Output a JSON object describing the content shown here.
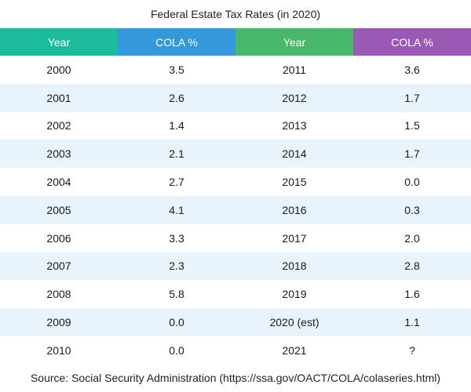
{
  "title": "Federal Estate Tax Rates (in 2020)",
  "headers": {
    "year_1": "Year",
    "cola_1": "COLA %",
    "year_2": "Year",
    "cola_2": "COLA %"
  },
  "header_colors": {
    "year_1": "#1abc9c",
    "cola_1": "#3498db",
    "year_2": "#4ab86a",
    "cola_2": "#9b59b6"
  },
  "rows": [
    {
      "year_1": "2000",
      "cola_1": "3.5",
      "year_2": "2011",
      "cola_2": "3.6"
    },
    {
      "year_1": "2001",
      "cola_1": "2.6",
      "year_2": "2012",
      "cola_2": "1.7"
    },
    {
      "year_1": "2002",
      "cola_1": "1.4",
      "year_2": "2013",
      "cola_2": "1.5"
    },
    {
      "year_1": "2003",
      "cola_1": "2.1",
      "year_2": "2014",
      "cola_2": "1.7"
    },
    {
      "year_1": "2004",
      "cola_1": "2.7",
      "year_2": "2015",
      "cola_2": "0.0"
    },
    {
      "year_1": "2005",
      "cola_1": "4.1",
      "year_2": "2016",
      "cola_2": "0.3"
    },
    {
      "year_1": "2006",
      "cola_1": "3.3",
      "year_2": "2017",
      "cola_2": "2.0"
    },
    {
      "year_1": "2007",
      "cola_1": "2.3",
      "year_2": "2018",
      "cola_2": "2.8"
    },
    {
      "year_1": "2008",
      "cola_1": "5.8",
      "year_2": "2019",
      "cola_2": "1.6"
    },
    {
      "year_1": "2009",
      "cola_1": "0.0",
      "year_2": "2020 (est)",
      "cola_2": "1.1"
    },
    {
      "year_1": "2010",
      "cola_1": "0.0",
      "year_2": "2021",
      "cola_2": "?"
    }
  ],
  "source": "Source: Social Security Administration (https://ssa.gov/OACT/COLA/colaseries.html)"
}
